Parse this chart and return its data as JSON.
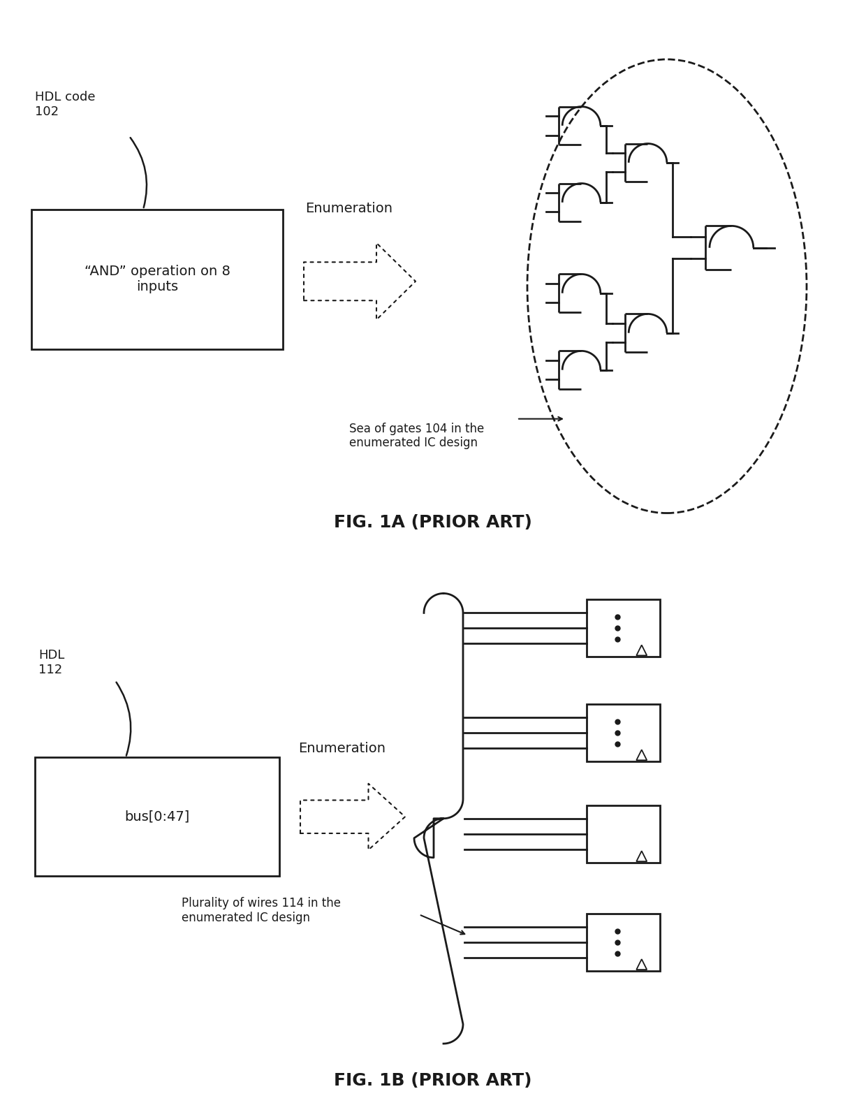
{
  "fig_width": 12.4,
  "fig_height": 15.69,
  "bg_color": "#ffffff",
  "line_color": "#1a1a1a",
  "fig1a_title": "FIG. 1A (PRIOR ART)",
  "fig1b_title": "FIG. 1B (PRIOR ART)",
  "fig1a_label_hdl": "HDL code\n102",
  "fig1a_box_text": "“AND” operation on 8\ninputs",
  "fig1a_enum_label": "Enumeration",
  "fig1a_sea_label": "Sea of gates 104 in the\nenumerated IC design",
  "fig1b_label_hdl": "HDL\n112",
  "fig1b_box_text": "bus[0:47]",
  "fig1b_enum_label": "Enumeration",
  "fig1b_wire_label": "Plurality of wires 114 in the\nenumerated IC design",
  "arrow_linestyle": "dotted"
}
